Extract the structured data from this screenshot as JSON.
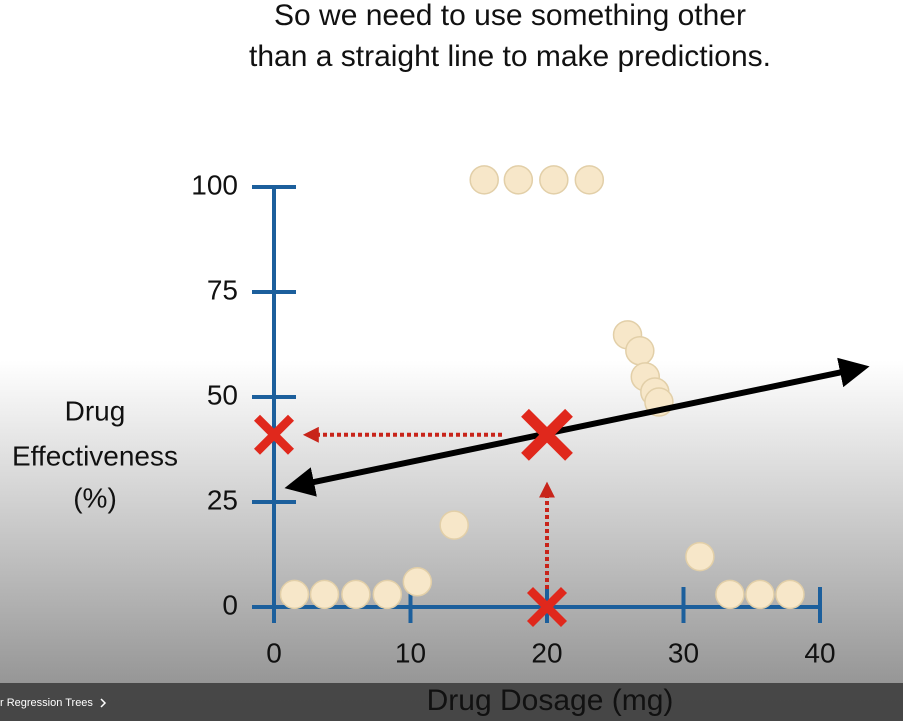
{
  "caption": [
    "So we need to use something other",
    "than a straight line to make predictions."
  ],
  "chart_data": {
    "type": "scatter",
    "x_label": "Drug Dosage (mg)",
    "y_label": [
      "Drug",
      "Effectiveness",
      "(%)"
    ],
    "x": [
      1.5,
      3.7,
      6.0,
      8.3,
      10.5,
      13.2,
      15.4,
      17.9,
      20.5,
      23.1,
      25.9,
      26.8,
      27.2,
      27.9,
      28.2,
      31.2,
      33.4,
      35.6,
      37.8
    ],
    "y": [
      3,
      3,
      3,
      3,
      6,
      19.5,
      101.7,
      101.7,
      101.7,
      101.7,
      64.8,
      61,
      54.8,
      51.2,
      48.8,
      12,
      3,
      3,
      3
    ],
    "color": "#f7e7c9",
    "axis_color": "#1c5f9c",
    "xlim": [
      0,
      40
    ],
    "ylim": [
      0,
      100
    ],
    "xticks": [
      0,
      10,
      20,
      30,
      40
    ],
    "yticks": [
      0,
      25,
      50,
      75,
      100
    ],
    "fit_line": {
      "x": [
        1.2,
        43.2
      ],
      "y": [
        28.6,
        57
      ],
      "color": "#000000"
    },
    "prediction": {
      "x": 20,
      "y": 41,
      "color": "#e0281c"
    }
  },
  "player": {
    "chapter": "r Regression Trees"
  }
}
